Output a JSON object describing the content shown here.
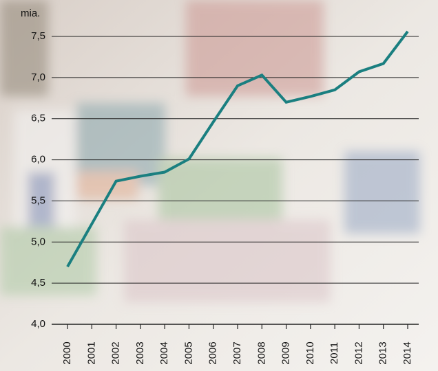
{
  "chart_data": {
    "type": "line",
    "unit_label": "mia.",
    "categories": [
      "2000",
      "2001",
      "2002",
      "2003",
      "2004",
      "2005",
      "2006",
      "2007",
      "2008",
      "2009",
      "2010",
      "2011",
      "2012",
      "2013",
      "2014"
    ],
    "values": [
      4.7,
      5.22,
      5.74,
      5.8,
      5.85,
      6.01,
      6.46,
      6.9,
      7.03,
      6.7,
      6.77,
      6.85,
      7.07,
      7.17,
      7.56
    ],
    "color": "#1a7f80",
    "ylim": [
      4.0,
      7.5
    ],
    "yticks": [
      {
        "value": 4.0,
        "label": "4,0"
      },
      {
        "value": 4.5,
        "label": "4,5"
      },
      {
        "value": 5.0,
        "label": "5,0"
      },
      {
        "value": 5.5,
        "label": "5,5"
      },
      {
        "value": 6.0,
        "label": "6,0"
      },
      {
        "value": 6.5,
        "label": "6,5"
      },
      {
        "value": 7.0,
        "label": "7,0"
      },
      {
        "value": 7.5,
        "label": "7,5"
      }
    ],
    "grid": true
  }
}
